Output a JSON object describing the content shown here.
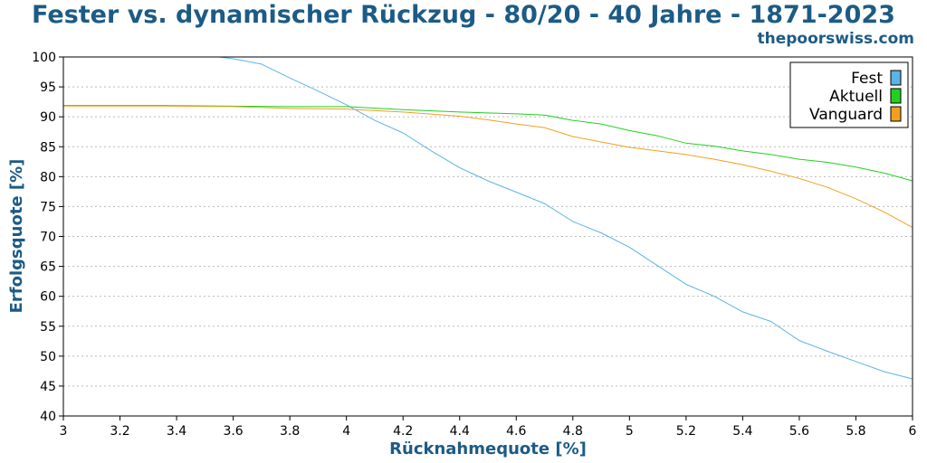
{
  "title": "Fester vs. dynamischer Rückzug - 80/20 - 40 Jahre - 1871-2023",
  "brand": "thepoorswiss.com",
  "chart_data": {
    "type": "line",
    "xlabel": "Rücknahmequote [%]",
    "ylabel": "Erfolgsquote [%]",
    "xlim": [
      3,
      6
    ],
    "ylim": [
      40,
      100
    ],
    "xticks": [
      "3",
      "3.2",
      "3.4",
      "3.6",
      "3.8",
      "4",
      "4.2",
      "4.4",
      "4.6",
      "4.8",
      "5",
      "5.2",
      "5.4",
      "5.6",
      "5.8",
      "6"
    ],
    "yticks": [
      "40",
      "45",
      "50",
      "55",
      "60",
      "65",
      "70",
      "75",
      "80",
      "85",
      "90",
      "95",
      "100"
    ],
    "grid": true,
    "legend_position": "top-right",
    "series": [
      {
        "name": "Fest",
        "color": "#5bb4e5",
        "x": [
          3.0,
          3.1,
          3.2,
          3.3,
          3.4,
          3.5,
          3.55,
          3.6,
          3.7,
          3.8,
          3.9,
          4.0,
          4.1,
          4.2,
          4.3,
          4.4,
          4.5,
          4.6,
          4.7,
          4.8,
          4.9,
          5.0,
          5.1,
          5.2,
          5.3,
          5.4,
          5.5,
          5.6,
          5.7,
          5.8,
          5.9,
          6.0
        ],
        "y": [
          100,
          100,
          100,
          100,
          100,
          100,
          100,
          99.7,
          98.8,
          96.5,
          94.3,
          92.0,
          89.4,
          87.3,
          84.3,
          81.5,
          79.3,
          77.4,
          75.5,
          72.5,
          70.6,
          68.2,
          65.1,
          62.0,
          60.0,
          57.4,
          55.8,
          52.6,
          50.8,
          49.1,
          47.4,
          46.2
        ]
      },
      {
        "name": "Aktuell",
        "color": "#22d022",
        "x": [
          3.0,
          3.35,
          3.55,
          3.8,
          4.0,
          4.2,
          4.4,
          4.6,
          4.7,
          4.8,
          4.9,
          5.0,
          5.1,
          5.2,
          5.3,
          5.4,
          5.5,
          5.6,
          5.7,
          5.8,
          5.9,
          6.0
        ],
        "y": [
          91.9,
          91.9,
          91.8,
          91.7,
          91.7,
          91.2,
          90.8,
          90.5,
          90.3,
          89.4,
          88.8,
          87.7,
          86.8,
          85.6,
          85.1,
          84.3,
          83.7,
          82.9,
          82.4,
          81.6,
          80.6,
          79.3
        ]
      },
      {
        "name": "Vanguard",
        "color": "#f0a020",
        "x": [
          3.0,
          3.35,
          3.6,
          3.8,
          4.0,
          4.2,
          4.4,
          4.5,
          4.6,
          4.7,
          4.8,
          4.9,
          5.0,
          5.1,
          5.2,
          5.3,
          5.4,
          5.5,
          5.6,
          5.7,
          5.8,
          5.9,
          6.0
        ],
        "y": [
          91.8,
          91.8,
          91.7,
          91.4,
          91.3,
          90.8,
          90.1,
          89.5,
          88.8,
          88.2,
          86.7,
          85.8,
          84.9,
          84.3,
          83.7,
          82.9,
          82.0,
          80.9,
          79.7,
          78.2,
          76.3,
          74.1,
          71.5
        ]
      }
    ]
  }
}
